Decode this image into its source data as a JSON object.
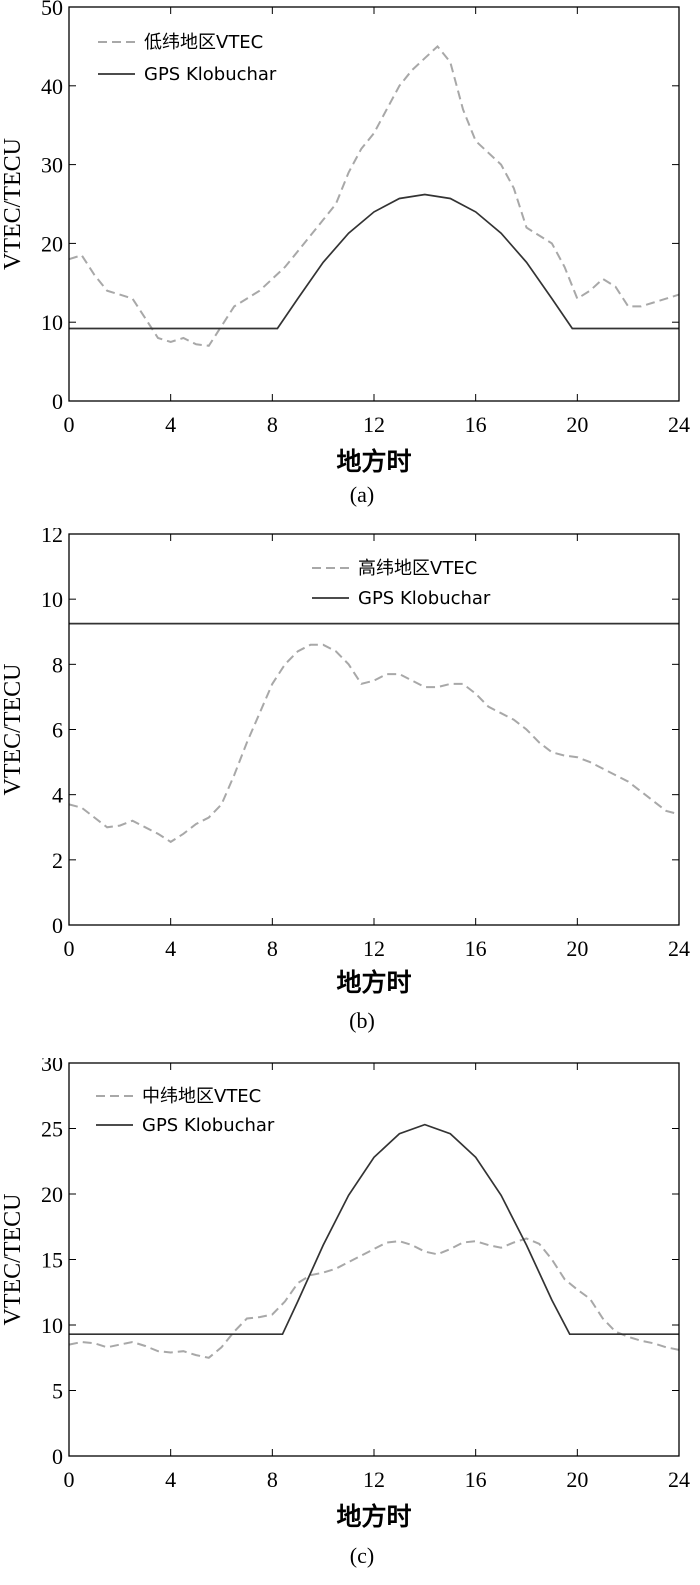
{
  "chart_data": [
    {
      "type": "line",
      "caption": "(a)",
      "xlabel": "地方时",
      "ylabel": "VTEC/TECU",
      "xlim": [
        0,
        24
      ],
      "ylim": [
        0,
        50
      ],
      "xticks": [
        "0",
        "4",
        "8",
        "12",
        "16",
        "20",
        "24"
      ],
      "yticks": [
        "0",
        "10",
        "20",
        "30",
        "40",
        "50"
      ],
      "legend_position": "top-left",
      "series": [
        {
          "name": "低纬地区VTEC",
          "style": "dashed",
          "color": "#a8a8a8",
          "x": [
            0,
            0.5,
            1,
            1.5,
            2,
            2.5,
            3,
            3.5,
            4,
            4.5,
            5,
            5.5,
            6,
            6.5,
            7,
            7.5,
            8,
            8.5,
            9,
            9.5,
            10,
            10.5,
            11,
            11.5,
            12,
            12.5,
            13,
            13.5,
            14,
            14.5,
            15,
            15.5,
            16,
            16.5,
            17,
            17.5,
            18,
            18.5,
            19,
            19.5,
            20,
            20.5,
            21,
            21.5,
            22,
            22.5,
            23,
            23.5,
            24
          ],
          "values": [
            18,
            18.5,
            16,
            14,
            13.5,
            13,
            10.5,
            8,
            7.5,
            8,
            7.2,
            7,
            9.5,
            12,
            13,
            14,
            15.5,
            17,
            19,
            21,
            23,
            25,
            29,
            32,
            34,
            37,
            40,
            42,
            43.5,
            45,
            43,
            37,
            33,
            31.5,
            30,
            27,
            22,
            21,
            20,
            17,
            13,
            14,
            15.5,
            14.5,
            12,
            12,
            12.5,
            13,
            13.5
          ]
        },
        {
          "name": "GPS Klobuchar",
          "style": "solid",
          "color": "#333333",
          "x": [
            0,
            8.2,
            9,
            10,
            11,
            12,
            13,
            14,
            15,
            16,
            17,
            18,
            19,
            19.8,
            24
          ],
          "values": [
            9.2,
            9.2,
            13.0,
            17.6,
            21.3,
            24.0,
            25.7,
            26.2,
            25.7,
            24.0,
            21.3,
            17.6,
            13.0,
            9.2,
            9.2
          ]
        }
      ]
    },
    {
      "type": "line",
      "caption": "(b)",
      "xlabel": "地方时",
      "ylabel": "VTEC/TECU",
      "xlim": [
        0,
        24
      ],
      "ylim": [
        0,
        12
      ],
      "xticks": [
        "0",
        "4",
        "8",
        "12",
        "16",
        "20",
        "24"
      ],
      "yticks": [
        "0",
        "2",
        "4",
        "6",
        "8",
        "10",
        "12"
      ],
      "legend_position": "top-center",
      "series": [
        {
          "name": "高纬地区VTEC",
          "style": "dashed",
          "color": "#a8a8a8",
          "x": [
            0,
            0.5,
            1,
            1.5,
            2,
            2.5,
            3,
            3.5,
            4,
            4.5,
            5,
            5.5,
            6,
            6.5,
            7,
            7.5,
            8,
            8.5,
            9,
            9.5,
            10,
            10.5,
            11,
            11.5,
            12,
            12.5,
            13,
            13.5,
            14,
            14.5,
            15,
            15.5,
            16,
            16.5,
            17,
            17.5,
            18,
            18.5,
            19,
            19.5,
            20,
            20.5,
            21,
            21.5,
            22,
            22.5,
            23,
            23.5,
            24
          ],
          "values": [
            3.7,
            3.6,
            3.3,
            3.0,
            3.05,
            3.2,
            3.0,
            2.8,
            2.55,
            2.8,
            3.1,
            3.3,
            3.7,
            4.6,
            5.6,
            6.5,
            7.4,
            8.0,
            8.4,
            8.6,
            8.6,
            8.4,
            8.0,
            7.4,
            7.5,
            7.7,
            7.7,
            7.5,
            7.3,
            7.3,
            7.4,
            7.4,
            7.1,
            6.7,
            6.5,
            6.3,
            6.0,
            5.6,
            5.3,
            5.2,
            5.15,
            5.0,
            4.8,
            4.6,
            4.4,
            4.1,
            3.8,
            3.5,
            3.4
          ]
        },
        {
          "name": "GPS Klobuchar",
          "style": "solid",
          "color": "#333333",
          "x": [
            0,
            24
          ],
          "values": [
            9.25,
            9.25
          ]
        }
      ]
    },
    {
      "type": "line",
      "caption": "(c)",
      "xlabel": "地方时",
      "ylabel": "VTEC/TECU",
      "xlim": [
        0,
        24
      ],
      "ylim": [
        0,
        30
      ],
      "xticks": [
        "0",
        "4",
        "8",
        "12",
        "16",
        "20",
        "24"
      ],
      "yticks": [
        "0",
        "5",
        "10",
        "15",
        "20",
        "25",
        "30"
      ],
      "legend_position": "top-left",
      "series": [
        {
          "name": "中纬地区VTEC",
          "style": "dashed",
          "color": "#a8a8a8",
          "x": [
            0,
            0.5,
            1,
            1.5,
            2,
            2.5,
            3,
            3.5,
            4,
            4.5,
            5,
            5.5,
            6,
            6.5,
            7,
            7.5,
            8,
            8.5,
            9,
            9.5,
            10,
            10.5,
            11,
            11.5,
            12,
            12.5,
            13,
            13.5,
            14,
            14.5,
            15,
            15.5,
            16,
            16.5,
            17,
            17.5,
            18,
            18.5,
            19,
            19.5,
            20,
            20.5,
            21,
            21.5,
            22,
            22.5,
            23,
            23.5,
            24
          ],
          "values": [
            8.5,
            8.7,
            8.6,
            8.3,
            8.5,
            8.7,
            8.4,
            8.0,
            7.9,
            8.0,
            7.7,
            7.5,
            8.3,
            9.5,
            10.5,
            10.6,
            10.8,
            11.8,
            13.2,
            13.8,
            14.0,
            14.3,
            14.8,
            15.3,
            15.8,
            16.3,
            16.4,
            16.1,
            15.6,
            15.4,
            15.8,
            16.3,
            16.4,
            16.1,
            15.9,
            16.3,
            16.6,
            16.2,
            15.0,
            13.5,
            12.7,
            12.0,
            10.5,
            9.5,
            9.1,
            8.8,
            8.6,
            8.3,
            8.1
          ]
        },
        {
          "name": "GPS Klobuchar",
          "style": "solid",
          "color": "#333333",
          "x": [
            0,
            8.4,
            9,
            10,
            11,
            12,
            13,
            14,
            15,
            16,
            17,
            18,
            19,
            19.7,
            24
          ],
          "values": [
            9.3,
            9.3,
            11.8,
            16.1,
            19.9,
            22.8,
            24.6,
            25.3,
            24.6,
            22.8,
            19.9,
            16.1,
            11.9,
            9.3,
            9.3
          ]
        }
      ]
    }
  ]
}
